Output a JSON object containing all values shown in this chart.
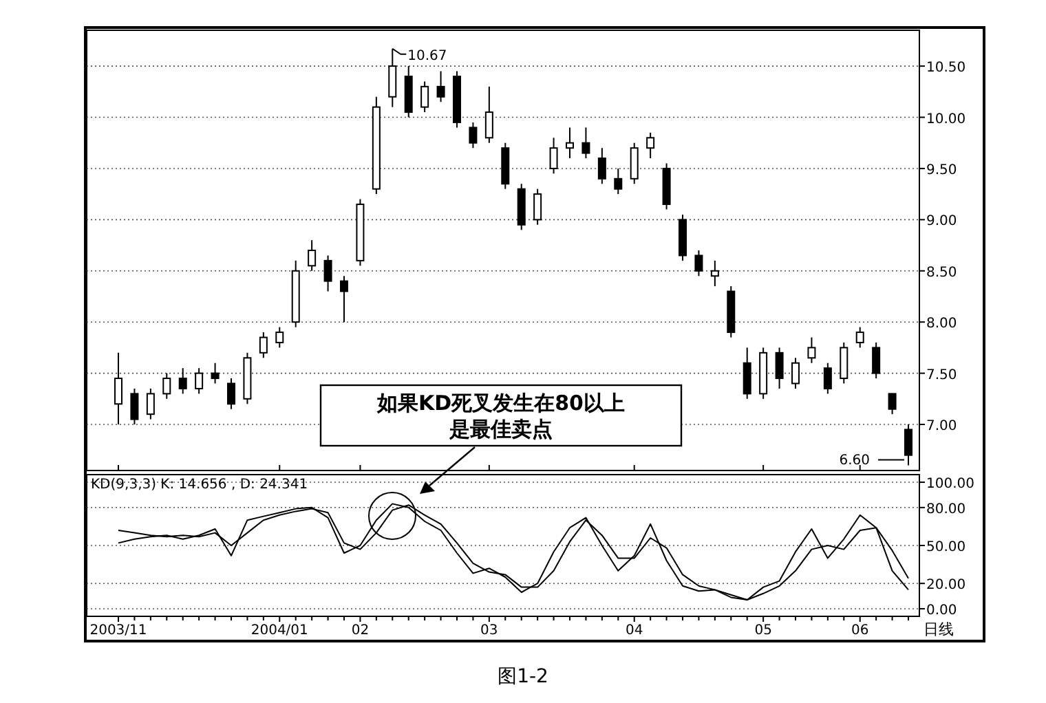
{
  "chart_data": [
    {
      "type": "candlestick",
      "categories": [
        "2003/11",
        null,
        null,
        null,
        null,
        null,
        null,
        null,
        null,
        null,
        "2004/01",
        null,
        null,
        null,
        null,
        "02",
        null,
        null,
        null,
        null,
        null,
        null,
        null,
        "03",
        null,
        null,
        null,
        null,
        null,
        null,
        null,
        null,
        "04",
        null,
        null,
        null,
        null,
        null,
        null,
        null,
        "05",
        null,
        null,
        null,
        null,
        null,
        "06",
        null,
        null,
        null
      ],
      "ohlc": [
        [
          7.2,
          7.7,
          7.0,
          7.45
        ],
        [
          7.3,
          7.35,
          7.0,
          7.05
        ],
        [
          7.1,
          7.35,
          7.05,
          7.3
        ],
        [
          7.3,
          7.5,
          7.25,
          7.45
        ],
        [
          7.45,
          7.55,
          7.3,
          7.35
        ],
        [
          7.35,
          7.55,
          7.3,
          7.5
        ],
        [
          7.5,
          7.6,
          7.4,
          7.45
        ],
        [
          7.4,
          7.45,
          7.15,
          7.2
        ],
        [
          7.25,
          7.7,
          7.2,
          7.65
        ],
        [
          7.7,
          7.9,
          7.65,
          7.85
        ],
        [
          7.8,
          7.95,
          7.75,
          7.9
        ],
        [
          8.0,
          8.6,
          7.95,
          8.5
        ],
        [
          8.55,
          8.8,
          8.5,
          8.7
        ],
        [
          8.6,
          8.65,
          8.3,
          8.4
        ],
        [
          8.4,
          8.45,
          8.0,
          8.3
        ],
        [
          8.6,
          9.2,
          8.55,
          9.15
        ],
        [
          9.3,
          10.2,
          9.25,
          10.1
        ],
        [
          10.2,
          10.67,
          10.1,
          10.5
        ],
        [
          10.4,
          10.5,
          10.0,
          10.05
        ],
        [
          10.1,
          10.35,
          10.05,
          10.3
        ],
        [
          10.3,
          10.45,
          10.15,
          10.2
        ],
        [
          10.4,
          10.45,
          9.9,
          9.95
        ],
        [
          9.9,
          9.95,
          9.7,
          9.75
        ],
        [
          9.8,
          10.3,
          9.75,
          10.05
        ],
        [
          9.7,
          9.75,
          9.3,
          9.35
        ],
        [
          9.3,
          9.35,
          8.9,
          8.95
        ],
        [
          9.0,
          9.3,
          8.95,
          9.25
        ],
        [
          9.5,
          9.8,
          9.45,
          9.7
        ],
        [
          9.7,
          9.9,
          9.6,
          9.75
        ],
        [
          9.75,
          9.9,
          9.6,
          9.65
        ],
        [
          9.6,
          9.7,
          9.35,
          9.4
        ],
        [
          9.4,
          9.5,
          9.25,
          9.3
        ],
        [
          9.4,
          9.75,
          9.35,
          9.7
        ],
        [
          9.7,
          9.85,
          9.6,
          9.8
        ],
        [
          9.5,
          9.55,
          9.1,
          9.15
        ],
        [
          9.0,
          9.05,
          8.6,
          8.65
        ],
        [
          8.65,
          8.7,
          8.45,
          8.5
        ],
        [
          8.45,
          8.6,
          8.35,
          8.5
        ],
        [
          8.3,
          8.35,
          7.85,
          7.9
        ],
        [
          7.6,
          7.75,
          7.25,
          7.3
        ],
        [
          7.3,
          7.75,
          7.25,
          7.7
        ],
        [
          7.7,
          7.75,
          7.35,
          7.45
        ],
        [
          7.4,
          7.65,
          7.35,
          7.6
        ],
        [
          7.65,
          7.85,
          7.6,
          7.75
        ],
        [
          7.55,
          7.6,
          7.3,
          7.35
        ],
        [
          7.45,
          7.8,
          7.4,
          7.75
        ],
        [
          7.8,
          7.95,
          7.75,
          7.9
        ],
        [
          7.75,
          7.8,
          7.45,
          7.5
        ],
        [
          7.3,
          7.3,
          7.1,
          7.15
        ],
        [
          6.95,
          7.0,
          6.6,
          6.7
        ]
      ],
      "color": "#000000",
      "ylim": [
        6.55,
        10.85
      ],
      "yticks": [
        {
          "value": 7,
          "label": "7.00"
        },
        {
          "value": 7.5,
          "label": "7.50"
        },
        {
          "value": 8,
          "label": "8.00"
        },
        {
          "value": 8.5,
          "label": "8.50"
        },
        {
          "value": 9,
          "label": "9.00"
        },
        {
          "value": 9.5,
          "label": "9.50"
        },
        {
          "value": 10,
          "label": "10.00"
        },
        {
          "value": 10.5,
          "label": "10.50"
        }
      ],
      "grid": "y",
      "tick_labels": "y",
      "annotations": [
        "10.67",
        "6.60",
        "如果KD死叉发生在80以上",
        "是最佳卖点"
      ]
    },
    {
      "type": "line",
      "title": "KD(9,3,3)  K: 14.656 , D: 24.341",
      "categories": [
        "2003/11",
        null,
        null,
        null,
        null,
        null,
        null,
        null,
        null,
        null,
        "2004/01",
        null,
        null,
        null,
        null,
        "02",
        null,
        null,
        null,
        null,
        null,
        null,
        null,
        "03",
        null,
        null,
        null,
        null,
        null,
        null,
        null,
        null,
        "04",
        null,
        null,
        null,
        null,
        null,
        null,
        null,
        "05",
        null,
        null,
        null,
        null,
        null,
        "06",
        null,
        null,
        null
      ],
      "series": [
        {
          "color": "#000000",
          "values": [
            52,
            55,
            57,
            58,
            55,
            58,
            63,
            42,
            70,
            73,
            76,
            79,
            80,
            72,
            44,
            50,
            70,
            83,
            80,
            69,
            62,
            44,
            28,
            32,
            25,
            13,
            20,
            45,
            64,
            72,
            50,
            30,
            42,
            67,
            38,
            18,
            14,
            15,
            9,
            7,
            17,
            22,
            45,
            63,
            40,
            55,
            74,
            64,
            30,
            15
          ]
        },
        {
          "color": "#000000",
          "values": [
            62,
            60,
            58,
            57,
            58,
            57,
            60,
            50,
            60,
            70,
            74,
            77,
            79,
            76,
            52,
            47,
            60,
            78,
            82,
            74,
            67,
            52,
            36,
            29,
            27,
            17,
            17,
            30,
            53,
            70,
            58,
            40,
            40,
            56,
            48,
            27,
            18,
            15,
            11,
            7,
            12,
            18,
            30,
            47,
            50,
            47,
            62,
            64,
            46,
            24
          ]
        }
      ],
      "ylim": [
        -6,
        106
      ],
      "yticks": [
        {
          "value": 0,
          "label": "0.00"
        },
        {
          "value": 20,
          "label": "20.00"
        },
        {
          "value": 50,
          "label": "50.00"
        },
        {
          "value": 80,
          "label": "80.00"
        },
        {
          "value": 100,
          "label": "100.00"
        }
      ],
      "grid": "y",
      "line_style": "solid",
      "marker": "none",
      "annotations": [
        "日线",
        "图1-2"
      ]
    }
  ]
}
